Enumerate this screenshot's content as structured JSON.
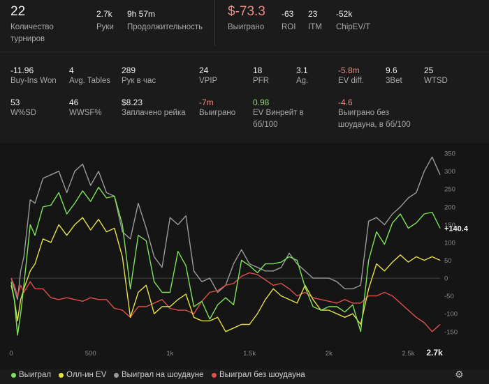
{
  "top_stats": {
    "tournaments": {
      "value": "22",
      "label": "Количество турниров"
    },
    "hands": {
      "value": "2.7k",
      "label": "Руки"
    },
    "duration": {
      "value": "9h 57m",
      "label": "Продолжительность"
    },
    "won": {
      "value": "$-73.3",
      "label": "Выиграно"
    },
    "roi": {
      "value": "-63",
      "label": "ROI"
    },
    "itm": {
      "value": "23",
      "label": "ITM"
    },
    "chipev": {
      "value": "-52k",
      "label": "ChipEV/T"
    }
  },
  "row2": [
    {
      "value": "-11.96",
      "label": "Buy-Ins Won"
    },
    {
      "value": "4",
      "label": "Avg. Tables"
    },
    {
      "value": "289",
      "label": "Рук в час"
    },
    {
      "value": "24",
      "label": "VPIP"
    },
    {
      "value": "18",
      "label": "PFR"
    },
    {
      "value": "3.1",
      "label": "Ag."
    },
    {
      "value": "-5.8m",
      "label": "EV diff."
    },
    {
      "value": "9.6",
      "label": "3Bet"
    },
    {
      "value": "25",
      "label": "WTSD"
    }
  ],
  "row3": [
    {
      "value": "53",
      "label": "W%SD"
    },
    {
      "value": "46",
      "label": "WWSF%"
    },
    {
      "value": "$8.23",
      "label": "Заплачено рейка"
    },
    {
      "value": "-7m",
      "label": "Выиграно"
    },
    {
      "value": "0.98",
      "label": "EV Винрейт в бб/100"
    },
    {
      "value": "-4.6",
      "label": "Выиграно без шоудауна, в бб/100"
    }
  ],
  "colors": {
    "green": "#7ee35a",
    "yellow": "#e5e04a",
    "gray": "#9a9a9a",
    "red": "#e0504a",
    "negative": "#f0897f",
    "positive": "#8ee06c"
  },
  "legend": [
    {
      "label": "Выиграл",
      "color": "#7ee35a"
    },
    {
      "label": "Олл-ин EV",
      "color": "#e5e04a"
    },
    {
      "label": "Выиграл на шоудауне",
      "color": "#9a9a9a"
    },
    {
      "label": "Выиграл без шоудауна",
      "color": "#e0504a"
    }
  ],
  "settings_icon": "gear-icon",
  "chart_data": {
    "type": "line",
    "xlim": [
      0,
      2700
    ],
    "ylim": [
      -170,
      360
    ],
    "x_ticks": [
      "0",
      "500",
      "1k",
      "1.5k",
      "2k",
      "2.5k",
      "2.7k"
    ],
    "x_tick_values": [
      0,
      500,
      1000,
      1500,
      2000,
      2500,
      2700
    ],
    "y_ticks": [
      350,
      300,
      250,
      200,
      150,
      100,
      50,
      0,
      -50,
      -100,
      -150
    ],
    "current_label": "+140.4",
    "grid": false,
    "series": [
      {
        "name": "Выиграл",
        "color": "#7ee35a",
        "x": [
          0,
          20,
          40,
          60,
          80,
          120,
          150,
          200,
          250,
          300,
          350,
          400,
          450,
          500,
          550,
          600,
          650,
          700,
          750,
          800,
          850,
          900,
          950,
          1000,
          1050,
          1100,
          1150,
          1200,
          1250,
          1300,
          1350,
          1400,
          1450,
          1500,
          1550,
          1600,
          1650,
          1700,
          1750,
          1800,
          1850,
          1900,
          1950,
          2000,
          2050,
          2100,
          2150,
          2200,
          2250,
          2300,
          2350,
          2400,
          2450,
          2500,
          2550,
          2600,
          2650,
          2700
        ],
        "y": [
          -10,
          -60,
          -160,
          -100,
          -20,
          150,
          120,
          200,
          205,
          240,
          180,
          210,
          245,
          215,
          255,
          225,
          230,
          150,
          -30,
          120,
          105,
          -10,
          -40,
          -40,
          75,
          35,
          -80,
          -65,
          -115,
          -75,
          -55,
          -75,
          50,
          35,
          15,
          40,
          40,
          45,
          60,
          50,
          -25,
          -80,
          -90,
          -80,
          -80,
          -95,
          -75,
          -150,
          50,
          130,
          95,
          155,
          180,
          140,
          155,
          180,
          185,
          140
        ]
      },
      {
        "name": "Олл-ин EV",
        "color": "#e5e04a",
        "x": [
          0,
          20,
          40,
          60,
          80,
          120,
          150,
          200,
          250,
          300,
          350,
          400,
          450,
          500,
          550,
          600,
          650,
          700,
          750,
          800,
          850,
          900,
          950,
          1000,
          1050,
          1100,
          1150,
          1200,
          1250,
          1300,
          1350,
          1400,
          1450,
          1500,
          1550,
          1600,
          1650,
          1700,
          1750,
          1800,
          1850,
          1900,
          1950,
          2000,
          2050,
          2100,
          2150,
          2200,
          2250,
          2300,
          2350,
          2400,
          2450,
          2500,
          2550,
          2600,
          2650,
          2700
        ],
        "y": [
          -20,
          -60,
          -120,
          -60,
          -30,
          20,
          40,
          110,
          100,
          150,
          120,
          150,
          170,
          135,
          165,
          130,
          140,
          60,
          -110,
          -40,
          -20,
          -100,
          -80,
          -80,
          -60,
          -45,
          -110,
          -120,
          -120,
          -110,
          -150,
          -140,
          -130,
          -130,
          -100,
          -60,
          -30,
          -50,
          -60,
          -70,
          -20,
          -60,
          -90,
          -90,
          -100,
          -110,
          -100,
          -130,
          -30,
          40,
          20,
          45,
          65,
          45,
          60,
          50,
          60,
          50
        ]
      },
      {
        "name": "Выиграл на шоудауне",
        "color": "#9a9a9a",
        "x": [
          0,
          20,
          40,
          60,
          80,
          120,
          150,
          200,
          250,
          300,
          350,
          400,
          450,
          500,
          550,
          600,
          650,
          700,
          750,
          800,
          850,
          900,
          950,
          1000,
          1050,
          1100,
          1150,
          1200,
          1250,
          1300,
          1350,
          1400,
          1450,
          1500,
          1550,
          1600,
          1650,
          1700,
          1750,
          1800,
          1850,
          1900,
          1950,
          2000,
          2050,
          2100,
          2150,
          2200,
          2250,
          2300,
          2350,
          2400,
          2450,
          2500,
          2550,
          2600,
          2650,
          2700
        ],
        "y": [
          0,
          -30,
          -60,
          20,
          60,
          220,
          210,
          280,
          290,
          300,
          240,
          300,
          320,
          260,
          300,
          240,
          230,
          130,
          110,
          210,
          140,
          60,
          30,
          170,
          150,
          175,
          20,
          -10,
          0,
          -40,
          -20,
          40,
          80,
          40,
          30,
          20,
          20,
          30,
          70,
          40,
          20,
          0,
          0,
          0,
          -10,
          -30,
          -30,
          -20,
          160,
          170,
          150,
          180,
          200,
          225,
          240,
          300,
          340,
          290
        ]
      },
      {
        "name": "Выиграл без шоудауна",
        "color": "#e0504a",
        "x": [
          0,
          20,
          40,
          60,
          80,
          120,
          150,
          200,
          250,
          300,
          350,
          400,
          450,
          500,
          550,
          600,
          650,
          700,
          750,
          800,
          850,
          900,
          950,
          1000,
          1050,
          1100,
          1150,
          1200,
          1250,
          1300,
          1350,
          1400,
          1450,
          1500,
          1550,
          1600,
          1650,
          1700,
          1750,
          1800,
          1850,
          1900,
          1950,
          2000,
          2050,
          2100,
          2150,
          2200,
          2250,
          2300,
          2350,
          2400,
          2450,
          2500,
          2550,
          2600,
          2650,
          2700
        ],
        "y": [
          0,
          -20,
          -50,
          -20,
          -40,
          -10,
          -30,
          -30,
          -55,
          -60,
          -55,
          -60,
          -65,
          -55,
          -60,
          -60,
          -85,
          -90,
          -110,
          -80,
          -80,
          -70,
          -60,
          -85,
          -90,
          -90,
          -100,
          -65,
          -40,
          -35,
          -20,
          -15,
          5,
          15,
          10,
          -5,
          -20,
          -15,
          -30,
          -50,
          -40,
          -55,
          -60,
          -65,
          -70,
          -60,
          -70,
          -70,
          -50,
          -50,
          -40,
          -50,
          -70,
          -90,
          -110,
          -125,
          -150,
          -130
        ]
      }
    ]
  }
}
